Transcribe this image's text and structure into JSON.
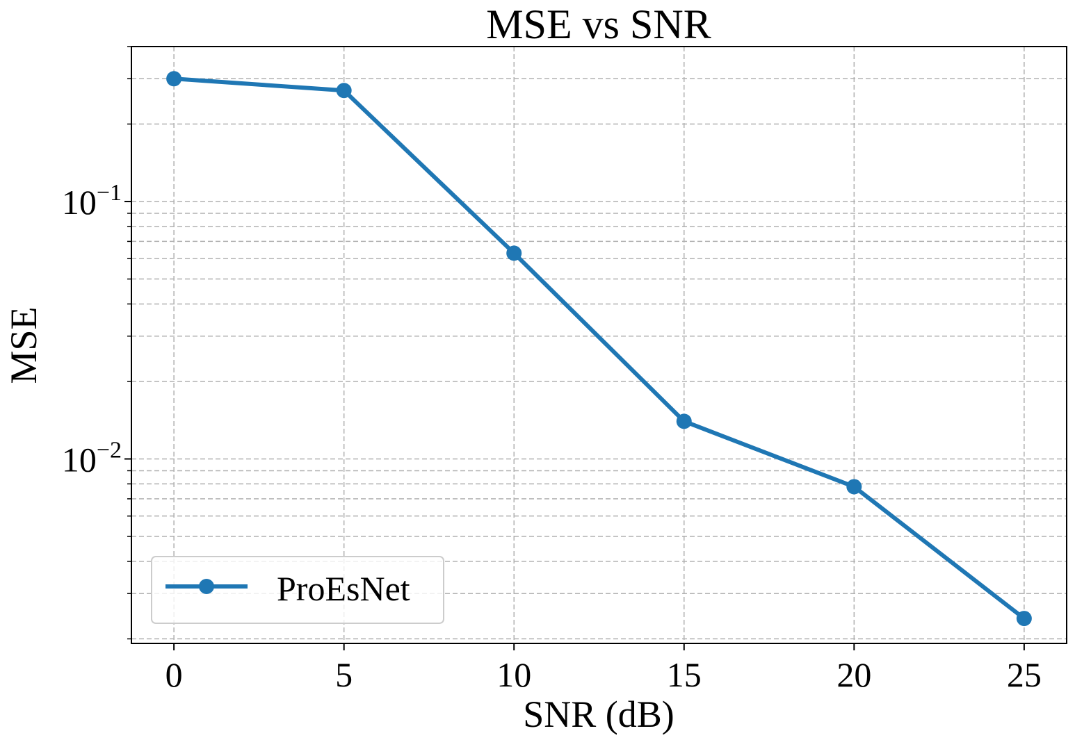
{
  "chart_data": {
    "type": "line",
    "title": "MSE vs SNR",
    "xlabel": "SNR (dB)",
    "ylabel": "MSE",
    "yscale": "log",
    "xlim": [
      -1.25,
      26.25
    ],
    "ylim": [
      0.00192,
      0.4
    ],
    "x": [
      0,
      5,
      10,
      15,
      20,
      25
    ],
    "x_tick_labels": [
      "0",
      "5",
      "10",
      "15",
      "20",
      "25"
    ],
    "y_ticks": [
      {
        "value": 0.1,
        "base": "10",
        "exp": "−1"
      },
      {
        "value": 0.01,
        "base": "10",
        "exp": "−2"
      }
    ],
    "grid": true,
    "legend_position": "lower-left",
    "series": [
      {
        "name": "ProEsNet",
        "color": "#1f77b4",
        "marker": "circle",
        "values": [
          0.3,
          0.27,
          0.063,
          0.014,
          0.0078,
          0.0024
        ]
      }
    ]
  }
}
